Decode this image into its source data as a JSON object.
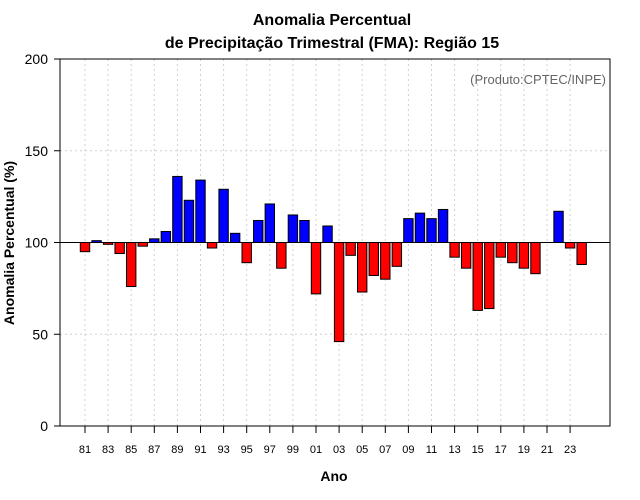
{
  "chart_data": {
    "type": "bar",
    "title": [
      "Anomalia Percentual",
      "de Precipitação Trimestral (FMA): Região 15"
    ],
    "credit": "(Produto:CPTEC/INPE)",
    "xlabel": "Ano",
    "ylabel": "Anomalia Percentual (%)",
    "ylim": [
      0,
      200
    ],
    "yticks": [
      0,
      50,
      100,
      150,
      200
    ],
    "baseline": 100,
    "grid": true,
    "colors": {
      "above": "#0000ff",
      "below": "#ff0000",
      "outline": "#000000",
      "grid": "#d0d0d0"
    },
    "categories": [
      "81",
      "82",
      "83",
      "84",
      "85",
      "86",
      "87",
      "88",
      "89",
      "90",
      "91",
      "92",
      "93",
      "94",
      "95",
      "96",
      "97",
      "98",
      "99",
      "00",
      "01",
      "02",
      "03",
      "04",
      "05",
      "06",
      "07",
      "08",
      "09",
      "10",
      "11",
      "12",
      "13",
      "14",
      "15",
      "16",
      "17",
      "18",
      "19",
      "20",
      "21",
      "22",
      "23",
      "24"
    ],
    "xtick_labels": [
      "81",
      "83",
      "85",
      "87",
      "89",
      "91",
      "93",
      "95",
      "97",
      "99",
      "01",
      "03",
      "05",
      "07",
      "09",
      "11",
      "13",
      "15",
      "17",
      "19",
      "21",
      "23"
    ],
    "values": [
      95,
      101,
      99,
      94,
      76,
      98,
      102,
      106,
      136,
      123,
      134,
      97,
      129,
      105,
      89,
      112,
      121,
      86,
      115,
      112,
      72,
      109,
      46,
      93,
      73,
      82,
      80,
      87,
      113,
      116,
      113,
      118,
      92,
      86,
      63,
      64,
      92,
      89,
      86,
      83,
      100,
      117,
      97,
      88
    ]
  }
}
